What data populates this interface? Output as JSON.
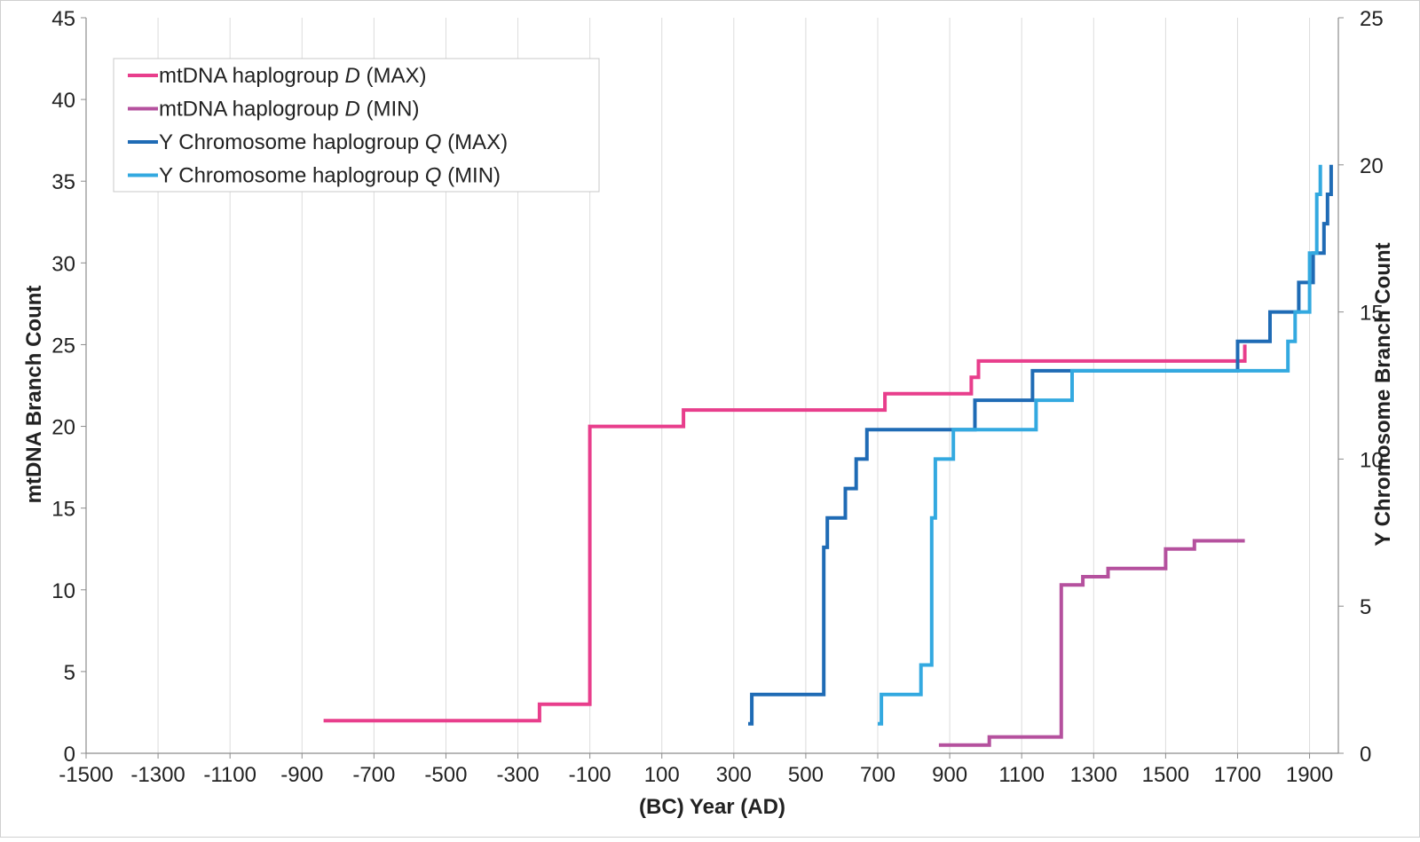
{
  "chart_data": {
    "type": "line",
    "title": "",
    "xlabel": "(BC) Year (AD)",
    "ylabel": "mtDNA Branch Count",
    "y2label": "Y Chromosome Branch Count",
    "xlim": [
      -1500,
      1980
    ],
    "ylim": [
      0,
      45
    ],
    "y2lim": [
      0,
      25
    ],
    "x_ticks": [
      {
        "value": -1500,
        "label": "-1500"
      },
      {
        "value": -1300,
        "label": "-1300"
      },
      {
        "value": -1100,
        "label": "-1100"
      },
      {
        "value": -900,
        "label": "-900"
      },
      {
        "value": -700,
        "label": "-700"
      },
      {
        "value": -500,
        "label": "-500"
      },
      {
        "value": -300,
        "label": "-300"
      },
      {
        "value": -100,
        "label": "-100"
      },
      {
        "value": 100,
        "label": "100"
      },
      {
        "value": 300,
        "label": "300"
      },
      {
        "value": 500,
        "label": "500"
      },
      {
        "value": 700,
        "label": "700"
      },
      {
        "value": 900,
        "label": "900"
      },
      {
        "value": 1100,
        "label": "1100"
      },
      {
        "value": 1300,
        "label": "1300"
      },
      {
        "value": 1500,
        "label": "1500"
      },
      {
        "value": 1700,
        "label": "1700"
      },
      {
        "value": 1900,
        "label": "1900"
      }
    ],
    "y_ticks": [
      0,
      5,
      10,
      15,
      20,
      25,
      30,
      35,
      40,
      45
    ],
    "y2_ticks": [
      0,
      5,
      10,
      15,
      20,
      25
    ],
    "grid": {
      "vertical": true,
      "horizontal": false
    },
    "legend": {
      "position": "top-left",
      "entries": [
        {
          "prefix": "mtDNA haplogroup ",
          "italic": "D",
          "suffix": " (MAX)"
        },
        {
          "prefix": "mtDNA haplogroup ",
          "italic": "D",
          "suffix": " (MIN)"
        },
        {
          "prefix": "Y Chromosome haplogroup ",
          "italic": "Q",
          "suffix": " (MAX)"
        },
        {
          "prefix": "Y Chromosome haplogroup ",
          "italic": "Q",
          "suffix": " (MIN)"
        }
      ]
    },
    "series": [
      {
        "color": "#e83e8c",
        "axis": "left",
        "points": [
          [
            -840,
            2
          ],
          [
            -240,
            2
          ],
          [
            -240,
            3
          ],
          [
            -100,
            3
          ],
          [
            -100,
            20
          ],
          [
            160,
            20
          ],
          [
            160,
            21
          ],
          [
            720,
            21
          ],
          [
            720,
            22
          ],
          [
            960,
            22
          ],
          [
            960,
            23
          ],
          [
            980,
            23
          ],
          [
            980,
            24
          ],
          [
            1720,
            24
          ],
          [
            1720,
            25
          ]
        ]
      },
      {
        "color": "#b5519e",
        "axis": "left",
        "points": [
          [
            870,
            0.5
          ],
          [
            1010,
            0.5
          ],
          [
            1010,
            1
          ],
          [
            1210,
            1
          ],
          [
            1210,
            10.3
          ],
          [
            1270,
            10.3
          ],
          [
            1270,
            10.8
          ],
          [
            1340,
            10.8
          ],
          [
            1340,
            11.3
          ],
          [
            1500,
            11.3
          ],
          [
            1500,
            12.5
          ],
          [
            1580,
            12.5
          ],
          [
            1580,
            13
          ],
          [
            1720,
            13
          ]
        ]
      },
      {
        "color": "#1f6bb5",
        "axis": "right",
        "points": [
          [
            340,
            1
          ],
          [
            350,
            1
          ],
          [
            350,
            2
          ],
          [
            550,
            2
          ],
          [
            550,
            7
          ],
          [
            560,
            7
          ],
          [
            560,
            8
          ],
          [
            610,
            8
          ],
          [
            610,
            9
          ],
          [
            640,
            9
          ],
          [
            640,
            10
          ],
          [
            670,
            10
          ],
          [
            670,
            11
          ],
          [
            970,
            11
          ],
          [
            970,
            12
          ],
          [
            1130,
            12
          ],
          [
            1130,
            13
          ],
          [
            1700,
            13
          ],
          [
            1700,
            14
          ],
          [
            1790,
            14
          ],
          [
            1790,
            15
          ],
          [
            1870,
            15
          ],
          [
            1870,
            16
          ],
          [
            1910,
            16
          ],
          [
            1910,
            17
          ],
          [
            1940,
            17
          ],
          [
            1940,
            18
          ],
          [
            1950,
            18
          ],
          [
            1950,
            19
          ],
          [
            1960,
            19
          ],
          [
            1960,
            20
          ]
        ]
      },
      {
        "color": "#33a9e0",
        "axis": "right",
        "points": [
          [
            700,
            1
          ],
          [
            710,
            1
          ],
          [
            710,
            2
          ],
          [
            820,
            2
          ],
          [
            820,
            3
          ],
          [
            850,
            3
          ],
          [
            850,
            8
          ],
          [
            860,
            8
          ],
          [
            860,
            10
          ],
          [
            910,
            10
          ],
          [
            910,
            11
          ],
          [
            1140,
            11
          ],
          [
            1140,
            12
          ],
          [
            1240,
            12
          ],
          [
            1240,
            13
          ],
          [
            1840,
            13
          ],
          [
            1840,
            14
          ],
          [
            1860,
            14
          ],
          [
            1860,
            15
          ],
          [
            1900,
            15
          ],
          [
            1900,
            17
          ],
          [
            1920,
            17
          ],
          [
            1920,
            19
          ],
          [
            1930,
            19
          ],
          [
            1930,
            20
          ]
        ]
      }
    ]
  }
}
